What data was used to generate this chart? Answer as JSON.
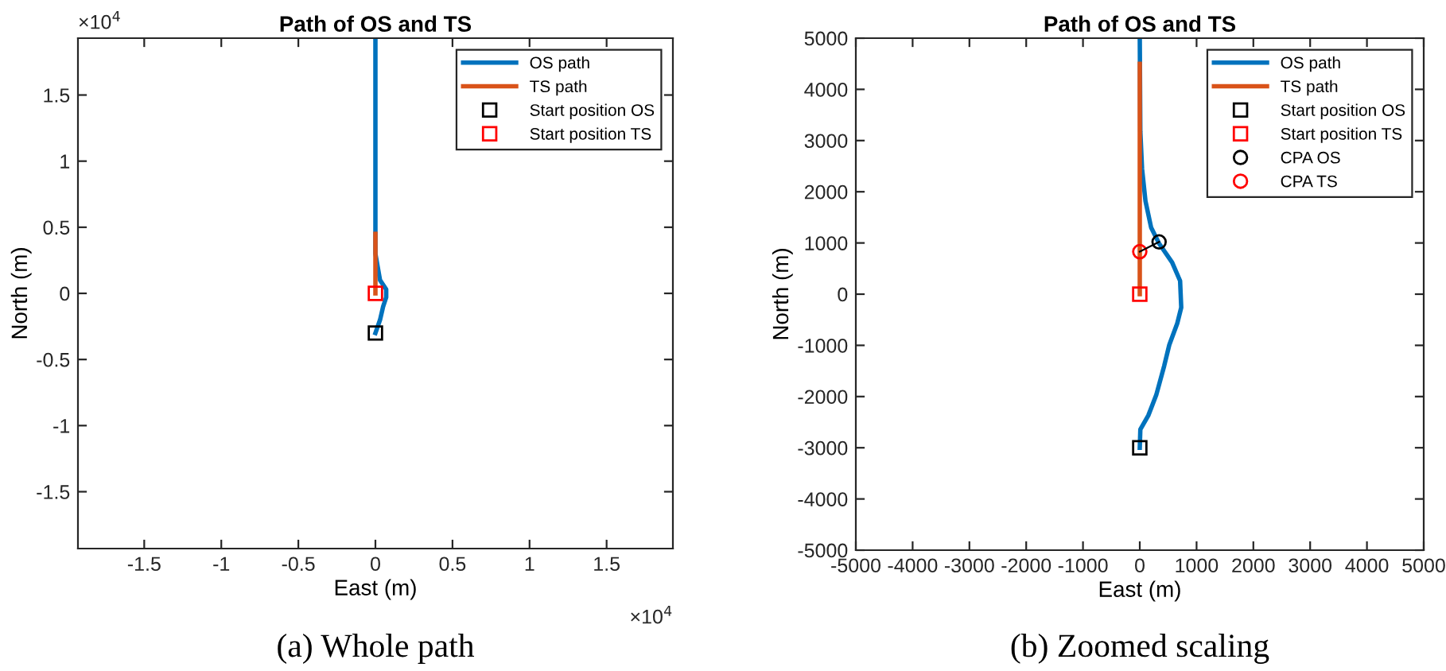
{
  "chart_data": [
    {
      "type": "line",
      "title": "Path of OS and TS",
      "xlabel": "East (m)",
      "ylabel": "North (m)",
      "xlim": [
        -1.93,
        1.93
      ],
      "ylim": [
        -1.93,
        1.93
      ],
      "xticks": [
        -1.5,
        -1,
        -0.5,
        0,
        0.5,
        1,
        1.5
      ],
      "yticks": [
        -1.5,
        -1,
        -0.5,
        0,
        0.5,
        1,
        1.5
      ],
      "grid": false,
      "legend": "top right",
      "annotations": [
        "(a) Whole path",
        "×10$^{4}$",
        "×10$^{4}$"
      ],
      "series": [
        {
          "name": "OS path",
          "color": "#0072bd",
          "x": [
            0,
            0.03,
            0.05,
            0.07,
            0.07,
            0.03,
            0,
            0
          ],
          "values": [
            -0.3,
            -0.2,
            -0.1,
            -0.03,
            0.03,
            0.1,
            0.3,
            1.93
          ]
        },
        {
          "name": "TS path",
          "color": "#d95319",
          "x": [
            0,
            0
          ],
          "values": [
            0,
            0.45
          ]
        },
        {
          "name": "Start position OS",
          "type": "scatter",
          "marker": "square",
          "color": "#000000",
          "x": [
            0
          ],
          "values": [
            -0.3
          ]
        },
        {
          "name": "Start position TS",
          "type": "scatter",
          "marker": "square",
          "color": "#ff0000",
          "x": [
            0
          ],
          "values": [
            0
          ]
        }
      ]
    },
    {
      "type": "line",
      "title": "Path of OS and TS",
      "xlabel": "East (m)",
      "ylabel": "North (m)",
      "xlim": [
        -5000,
        5000
      ],
      "ylim": [
        -5000,
        5000
      ],
      "xticks": [
        -5000,
        -4000,
        -3000,
        -2000,
        -1000,
        0,
        1000,
        2000,
        3000,
        4000,
        5000
      ],
      "yticks": [
        -5000,
        -4000,
        -3000,
        -2000,
        -1000,
        0,
        1000,
        2000,
        3000,
        4000,
        5000
      ],
      "grid": false,
      "legend": "top right",
      "annotations": [
        "(b) Zoomed scaling"
      ],
      "series": [
        {
          "name": "OS path",
          "color": "#0072bd",
          "x": [
            0,
            10,
            150,
            290,
            430,
            520,
            660,
            730,
            710,
            570,
            340,
            200,
            100,
            40,
            10,
            0
          ],
          "values": [
            -3000,
            -2640,
            -2370,
            -1970,
            -1400,
            -990,
            -570,
            -260,
            260,
            620,
            990,
            1300,
            1820,
            2450,
            3180,
            5000
          ]
        },
        {
          "name": "TS path",
          "color": "#d95319",
          "x": [
            0,
            0
          ],
          "values": [
            0,
            4500
          ]
        },
        {
          "name": "Start position OS",
          "type": "scatter",
          "marker": "square",
          "color": "#000000",
          "x": [
            0
          ],
          "values": [
            -3000
          ]
        },
        {
          "name": "Start position TS",
          "type": "scatter",
          "marker": "square",
          "color": "#ff0000",
          "x": [
            0
          ],
          "values": [
            0
          ]
        },
        {
          "name": "CPA OS",
          "type": "scatter",
          "marker": "circle",
          "color": "#000000",
          "x": [
            340
          ],
          "values": [
            1020
          ]
        },
        {
          "name": "CPA TS",
          "type": "scatter",
          "marker": "circle",
          "color": "#ff0000",
          "x": [
            0
          ],
          "values": [
            830
          ]
        },
        {
          "color": "#000000",
          "x": [
            0,
            340
          ],
          "values": [
            830,
            1020
          ]
        }
      ]
    }
  ]
}
